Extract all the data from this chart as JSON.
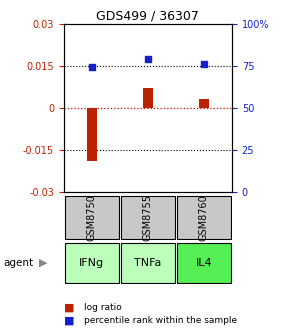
{
  "title": "GDS499 / 36307",
  "samples": [
    "GSM8750",
    "GSM8755",
    "GSM8760"
  ],
  "agents": [
    "IFNg",
    "TNFa",
    "IL4"
  ],
  "log_ratios": [
    -0.019,
    0.007,
    0.003
  ],
  "percentile_ranks": [
    74,
    79,
    76
  ],
  "ylim_left": [
    -0.03,
    0.03
  ],
  "ylim_right": [
    0,
    100
  ],
  "yticks_left": [
    -0.03,
    -0.015,
    0,
    0.015,
    0.03
  ],
  "ytick_labels_left": [
    "-0.03",
    "-0.015",
    "0",
    "0.015",
    "0.03"
  ],
  "yticks_right": [
    0,
    25,
    50,
    75,
    100
  ],
  "ytick_labels_right": [
    "0",
    "25",
    "50",
    "75",
    "100%"
  ],
  "bar_color_red": "#bb2200",
  "bar_color_blue": "#1122cc",
  "dotted_line_color": "#000000",
  "zero_line_color": "#dd0000",
  "sample_box_color": "#c8c8c8",
  "agent_colors": [
    "#bbffbb",
    "#bbffbb",
    "#55ee55"
  ],
  "legend_red": "log ratio",
  "legend_blue": "percentile rank within the sample",
  "bar_width": 0.18
}
